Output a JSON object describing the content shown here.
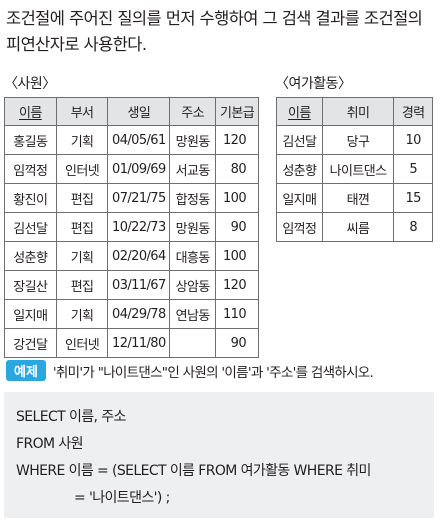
{
  "intro": {
    "text": "조건절에 주어진 질의를 먼저 수행하여 그 검색 결과를 조건절의 피연산자로 사용한다."
  },
  "employee_table": {
    "title": "〈사원〉",
    "headers": [
      "이름",
      "부서",
      "생일",
      "주소",
      "기본급"
    ],
    "rows": [
      [
        "홍길동",
        "기획",
        "04/05/61",
        "망원동",
        "120"
      ],
      [
        "임꺽정",
        "인터넷",
        "01/09/69",
        "서교동",
        "80"
      ],
      [
        "황진이",
        "편집",
        "07/21/75",
        "합정동",
        "100"
      ],
      [
        "김선달",
        "편집",
        "10/22/73",
        "망원동",
        "90"
      ],
      [
        "성춘향",
        "기획",
        "02/20/64",
        "대흥동",
        "100"
      ],
      [
        "장길산",
        "편집",
        "03/11/67",
        "상암동",
        "120"
      ],
      [
        "일지매",
        "기획",
        "04/29/78",
        "연남동",
        "110"
      ],
      [
        "강건달",
        "인터넷",
        "12/11/80",
        "",
        "90"
      ]
    ]
  },
  "hobby_table": {
    "title": "〈여가활동〉",
    "headers": [
      "이름",
      "취미",
      "경력"
    ],
    "rows": [
      [
        "김선달",
        "당구",
        "10"
      ],
      [
        "성춘향",
        "나이트댄스",
        "5"
      ],
      [
        "일지매",
        "태껸",
        "15"
      ],
      [
        "임꺽정",
        "씨름",
        "8"
      ]
    ]
  },
  "example": {
    "badge": "예제",
    "text": "'취미'가 \"나이트댄스\"인 사원의 '이름'과 '주소'를 검색하시오."
  },
  "code": {
    "lines": [
      "SELECT 이름, 주소",
      "FROM 사원",
      "WHERE 이름 = (SELECT 이름 FROM 여가활동 WHERE 취미",
      "= '나이트댄스') ;"
    ]
  }
}
